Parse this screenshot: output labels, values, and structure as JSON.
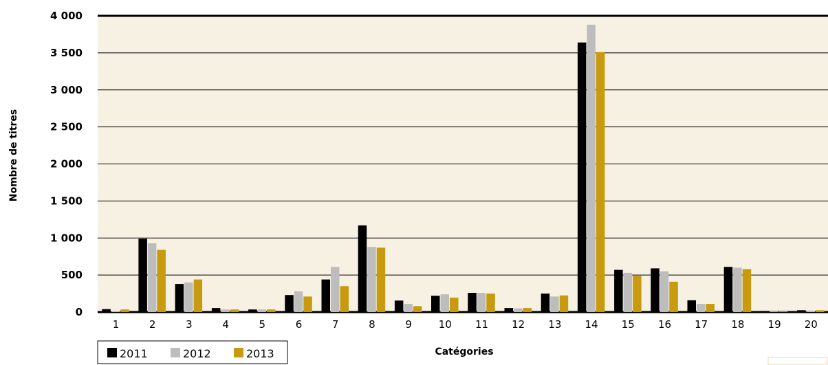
{
  "chart_data": {
    "type": "bar",
    "xlabel": "Catégories",
    "ylabel": "Nombre de titres",
    "ylim": [
      0,
      4000
    ],
    "yticks": [
      0,
      500,
      1000,
      1500,
      2000,
      2500,
      3000,
      3500,
      4000
    ],
    "ytick_labels": [
      "0",
      "500",
      "1 000",
      "1 500",
      "2 000",
      "2 500",
      "3 000",
      "3 500",
      "4 000"
    ],
    "categories": [
      "1",
      "2",
      "3",
      "4",
      "5",
      "6",
      "7",
      "8",
      "9",
      "10",
      "11",
      "12",
      "13",
      "14",
      "15",
      "16",
      "17",
      "18",
      "19",
      "20"
    ],
    "series": [
      {
        "name": "2011",
        "color": "#000000",
        "values": [
          40,
          990,
          380,
          55,
          35,
          230,
          440,
          1170,
          155,
          220,
          260,
          55,
          250,
          3640,
          570,
          590,
          160,
          610,
          15,
          25
        ]
      },
      {
        "name": "2012",
        "color": "#bdbdbd",
        "values": [
          15,
          930,
          400,
          35,
          35,
          280,
          610,
          880,
          110,
          240,
          260,
          50,
          210,
          3880,
          530,
          550,
          110,
          600,
          10,
          20
        ]
      },
      {
        "name": "2013",
        "color": "#c79a0f",
        "values": [
          35,
          840,
          440,
          35,
          35,
          210,
          350,
          870,
          80,
          195,
          250,
          55,
          225,
          3510,
          490,
          410,
          110,
          580,
          10,
          25
        ]
      }
    ],
    "grid": true,
    "legend_position": "bottom-left",
    "plot_background": "#f7f1e3"
  }
}
